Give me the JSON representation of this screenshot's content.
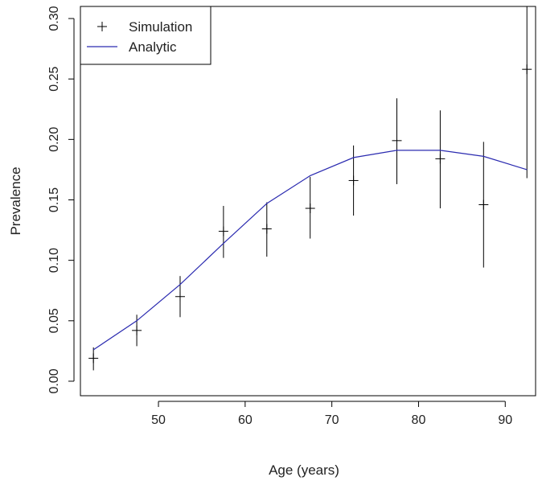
{
  "chart_data": {
    "type": "scatter",
    "title": "",
    "xlabel": "Age (years)",
    "ylabel": "Prevalence",
    "xlim": [
      41,
      93.5
    ],
    "ylim": [
      -0.012,
      0.31
    ],
    "x_ticks": [
      50,
      60,
      70,
      80,
      90
    ],
    "y_ticks": [
      0.0,
      0.05,
      0.1,
      0.15,
      0.2,
      0.25,
      0.3
    ],
    "grid": false,
    "legend_position": "top-left",
    "series": [
      {
        "name": "Simulation",
        "kind": "points-with-errorbars",
        "marker": "plus",
        "color": "#000000",
        "points": [
          {
            "x": 42.5,
            "y": 0.019,
            "lo": 0.009,
            "hi": 0.028
          },
          {
            "x": 47.5,
            "y": 0.042,
            "lo": 0.029,
            "hi": 0.055
          },
          {
            "x": 52.5,
            "y": 0.07,
            "lo": 0.053,
            "hi": 0.087
          },
          {
            "x": 57.5,
            "y": 0.124,
            "lo": 0.102,
            "hi": 0.145
          },
          {
            "x": 62.5,
            "y": 0.126,
            "lo": 0.103,
            "hi": 0.148
          },
          {
            "x": 67.5,
            "y": 0.143,
            "lo": 0.118,
            "hi": 0.169
          },
          {
            "x": 72.5,
            "y": 0.166,
            "lo": 0.137,
            "hi": 0.195
          },
          {
            "x": 77.5,
            "y": 0.199,
            "lo": 0.163,
            "hi": 0.234
          },
          {
            "x": 82.5,
            "y": 0.184,
            "lo": 0.143,
            "hi": 0.224
          },
          {
            "x": 87.5,
            "y": 0.146,
            "lo": 0.094,
            "hi": 0.198
          },
          {
            "x": 92.5,
            "y": 0.258,
            "lo": 0.168,
            "hi": 0.31
          }
        ]
      },
      {
        "name": "Analytic",
        "kind": "line",
        "color": "#2b2bb0",
        "x": [
          42.5,
          47.5,
          52.5,
          57.5,
          62.5,
          67.5,
          72.5,
          77.5,
          82.5,
          87.5,
          92.5
        ],
        "y": [
          0.026,
          0.05,
          0.08,
          0.114,
          0.147,
          0.17,
          0.185,
          0.191,
          0.191,
          0.186,
          0.175
        ]
      }
    ]
  }
}
